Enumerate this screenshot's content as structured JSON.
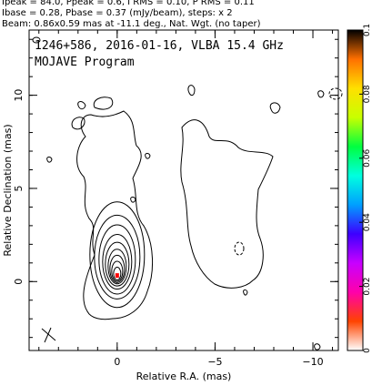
{
  "header": {
    "line1": "Ipeak = 84.0, Ppeak = 0.6, I RMS = 0.10, P RMS = 0.11",
    "line2": "Ibase = 0.28, Pbase = 0.37 (mJy/beam), steps: x 2",
    "line3": "Beam: 0.86x0.59 mas at -11.1 deg., Nat. Wgt. (no taper)"
  },
  "chart_data": {
    "type": "contour",
    "title": "1246+586, 2016-01-16, VLBA 15.4 GHz",
    "subtitle": "MOJAVE Program",
    "xlabel": "Relative R.A. (mas)",
    "ylabel": "Relative Declination (mas)",
    "xlim": [
      4.5,
      -11.3
    ],
    "ylim": [
      -3.7,
      13.5
    ],
    "x_ticks": [
      {
        "value": 0,
        "label": "0"
      },
      {
        "value": -5,
        "label": "−5"
      },
      {
        "value": -10,
        "label": "−10"
      }
    ],
    "y_ticks": [
      {
        "value": 0,
        "label": "0"
      },
      {
        "value": 5,
        "label": "5"
      },
      {
        "value": 10,
        "label": "10"
      }
    ],
    "peak_intensity_mJy_per_beam": 84.0,
    "base_contour_mJy_per_beam": 0.28,
    "contour_step_factor": 2,
    "beam": {
      "major_mas": 0.86,
      "minor_mas": 0.59,
      "pa_deg": -11.1
    },
    "core": {
      "x": 0,
      "y": 0.3
    },
    "colorbar": {
      "min": 0,
      "max": 0.1,
      "ticks": [
        "0",
        "0.02",
        "0.04",
        "0.06",
        "0.08",
        "0.1"
      ],
      "colors": [
        "#ffffff",
        "#ff4400",
        "#ff00aa",
        "#c800ff",
        "#3c00ff",
        "#00a0ff",
        "#00ffe0",
        "#00ff40",
        "#c8ff00",
        "#ffe000",
        "#ff7000",
        "#000000"
      ]
    }
  }
}
